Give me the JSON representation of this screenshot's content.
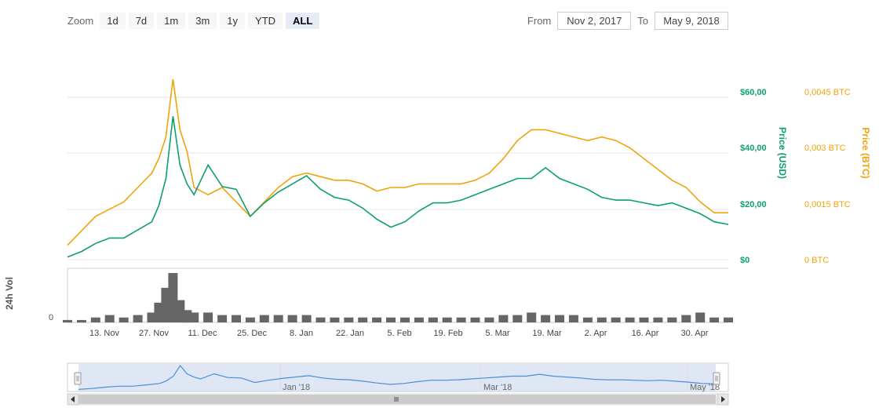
{
  "zoom": {
    "label": "Zoom",
    "buttons": [
      "1d",
      "7d",
      "1m",
      "3m",
      "1y",
      "YTD",
      "ALL"
    ],
    "active": "ALL"
  },
  "range": {
    "from_label": "From",
    "from_value": "Nov 2, 2017",
    "to_label": "To",
    "to_value": "May 9, 2018"
  },
  "colors": {
    "usd": "#0e9f6e",
    "btc": "#f0a30a",
    "volume": "#666666",
    "navigator": "#4a90d9",
    "grid": "#e6e6e6"
  },
  "chart_data": {
    "type": "line",
    "x_ticks": [
      "13. Nov",
      "27. Nov",
      "11. Dec",
      "25. Dec",
      "8. Jan",
      "22. Jan",
      "5. Feb",
      "19. Feb",
      "5. Mar",
      "19. Mar",
      "2. Apr",
      "16. Apr",
      "30. Apr"
    ],
    "y_left": {
      "label": "Price (USD)",
      "ticks": [
        "$0",
        "$20,00",
        "$40,00",
        "$60,00"
      ],
      "range": [
        0,
        60
      ]
    },
    "y_right": {
      "label": "Price (BTC)",
      "ticks": [
        "0 BTC",
        "0,0015 BTC",
        "0,003 BTC",
        "0,0045 BTC"
      ],
      "range": [
        0,
        0.0045
      ]
    },
    "volume_axis": {
      "label": "24h Vol",
      "ticks": [
        "0"
      ]
    },
    "navigator_labels": [
      "Jan '18",
      "Mar '18",
      "May '18"
    ],
    "x": [
      "2017-11-02",
      "2017-11-06",
      "2017-11-10",
      "2017-11-14",
      "2017-11-18",
      "2017-11-22",
      "2017-11-26",
      "2017-11-28",
      "2017-11-30",
      "2017-12-02",
      "2017-12-04",
      "2017-12-06",
      "2017-12-08",
      "2017-12-12",
      "2017-12-16",
      "2017-12-20",
      "2017-12-24",
      "2017-12-28",
      "2018-01-01",
      "2018-01-05",
      "2018-01-09",
      "2018-01-13",
      "2018-01-17",
      "2018-01-21",
      "2018-01-25",
      "2018-01-29",
      "2018-02-02",
      "2018-02-06",
      "2018-02-10",
      "2018-02-14",
      "2018-02-18",
      "2018-02-22",
      "2018-02-26",
      "2018-03-02",
      "2018-03-06",
      "2018-03-10",
      "2018-03-14",
      "2018-03-18",
      "2018-03-22",
      "2018-03-26",
      "2018-03-30",
      "2018-04-03",
      "2018-04-07",
      "2018-04-11",
      "2018-04-15",
      "2018-04-19",
      "2018-04-23",
      "2018-04-27",
      "2018-05-01",
      "2018-05-05",
      "2018-05-09"
    ],
    "series": [
      {
        "name": "Price (USD)",
        "axis": "left",
        "values": [
          1,
          3,
          6,
          8,
          8,
          11,
          14,
          20,
          30,
          53,
          35,
          28,
          24,
          35,
          27,
          26,
          16,
          21,
          25,
          28,
          31,
          26,
          23,
          22,
          19,
          15,
          12,
          14,
          18,
          21,
          21,
          22,
          24,
          26,
          28,
          30,
          30,
          34,
          30,
          28,
          26,
          23,
          22,
          22,
          21,
          20,
          21,
          19,
          17,
          14,
          13
        ]
      },
      {
        "name": "Price (BTC)",
        "axis": "right",
        "values": [
          0.0004,
          0.0008,
          0.0012,
          0.0014,
          0.0016,
          0.002,
          0.0024,
          0.0028,
          0.0034,
          0.005,
          0.0036,
          0.003,
          0.002,
          0.0018,
          0.002,
          0.0016,
          0.0012,
          0.0016,
          0.002,
          0.0023,
          0.0024,
          0.0023,
          0.0022,
          0.0022,
          0.0021,
          0.0019,
          0.002,
          0.002,
          0.0021,
          0.0021,
          0.0021,
          0.0021,
          0.0022,
          0.0024,
          0.0028,
          0.0033,
          0.0036,
          0.0036,
          0.0035,
          0.0034,
          0.0033,
          0.0034,
          0.0033,
          0.0031,
          0.0028,
          0.0025,
          0.0022,
          0.002,
          0.0016,
          0.0013,
          0.0013
        ]
      },
      {
        "name": "24h Vol",
        "axis": "volume",
        "values": [
          1,
          1,
          2,
          3,
          2,
          3,
          4,
          8,
          14,
          20,
          9,
          5,
          4,
          4,
          3,
          3,
          2,
          3,
          3,
          3,
          3,
          2,
          2,
          2,
          2,
          2,
          2,
          2,
          2,
          2,
          2,
          2,
          2,
          2,
          3,
          3,
          4,
          3,
          3,
          3,
          2,
          2,
          2,
          2,
          2,
          2,
          2,
          3,
          4,
          2,
          2
        ]
      }
    ]
  }
}
